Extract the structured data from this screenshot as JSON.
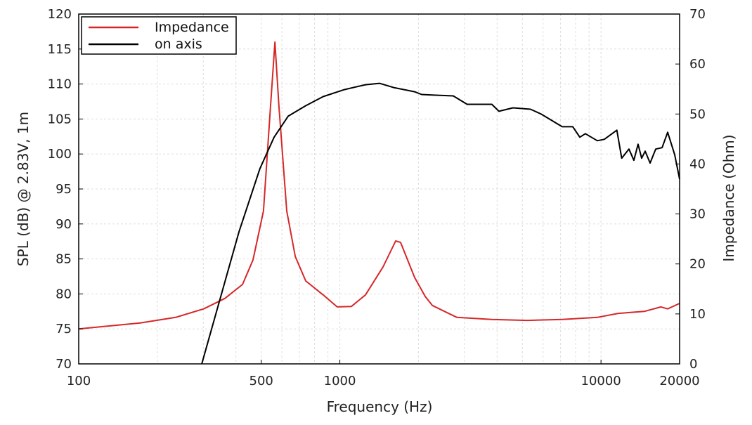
{
  "chart_data": {
    "type": "line",
    "title": "",
    "xlabel": "Frequency (Hz)",
    "ylabel": "SPL (dB) @ 2.83V, 1m",
    "y2label": "Impedance (Ohm)",
    "xscale": "log",
    "xlim": [
      100,
      20000
    ],
    "ylim": [
      70,
      120
    ],
    "y2lim": [
      0,
      70
    ],
    "xticks": [
      100,
      500,
      1000,
      10000,
      20000
    ],
    "yticks": [
      70,
      75,
      80,
      85,
      90,
      95,
      100,
      105,
      110,
      115,
      120
    ],
    "y2ticks": [
      0,
      10,
      20,
      30,
      40,
      50,
      60,
      70
    ],
    "grid": true,
    "legend": "top-left",
    "series": [
      {
        "name": "Impedance",
        "axis": "right",
        "color": "#d62728",
        "x": [
          100,
          172,
          235,
          301,
          363,
          424,
          465,
          510,
          543,
          564,
          584,
          626,
          675,
          740,
          863,
          977,
          1107,
          1253,
          1463,
          1636,
          1708,
          1933,
          2122,
          2260,
          2806,
          3819,
          5212,
          7100,
          9680,
          11640,
          14650,
          16960,
          18000,
          20000
        ],
        "y": [
          7.0,
          8.2,
          9.3,
          11.0,
          13.1,
          15.9,
          20.8,
          30.6,
          51.7,
          64.4,
          51.7,
          30.6,
          21.5,
          16.6,
          13.8,
          11.4,
          11.5,
          13.8,
          19.4,
          24.6,
          24.3,
          17.3,
          13.5,
          11.7,
          9.3,
          8.9,
          8.7,
          8.9,
          9.3,
          10.1,
          10.5,
          11.4,
          11.0,
          12.1
        ]
      },
      {
        "name": "on axis",
        "axis": "left",
        "color": "#000000",
        "x": [
          296,
          411,
          494,
          560,
          634,
          740,
          863,
          1040,
          1253,
          1419,
          1606,
          1933,
          2056,
          2328,
          2718,
          3073,
          3819,
          4066,
          4603,
          5372,
          5901,
          7100,
          7796,
          8298,
          8710,
          9680,
          10300,
          11500,
          12000,
          12790,
          13360,
          13870,
          14310,
          14760,
          15420,
          16200,
          17140,
          18000,
          19150,
          20000
        ],
        "y": [
          70,
          88.9,
          97.9,
          102.4,
          105.4,
          106.9,
          108.2,
          109.2,
          109.9,
          110.1,
          109.5,
          108.9,
          108.5,
          108.4,
          108.3,
          107.1,
          107.1,
          106.1,
          106.6,
          106.4,
          105.7,
          103.9,
          103.9,
          102.4,
          102.9,
          101.9,
          102.1,
          103.4,
          99.4,
          100.7,
          99.1,
          101.4,
          99.4,
          100.4,
          98.7,
          100.7,
          100.9,
          103.1,
          99.9,
          96.4
        ]
      }
    ]
  }
}
